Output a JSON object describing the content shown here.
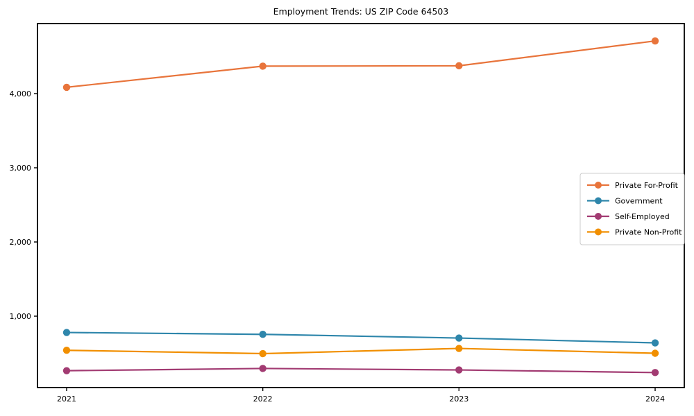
{
  "chart_data": {
    "type": "line",
    "title": "Employment Trends: US ZIP Code 64503",
    "categories": [
      "2021",
      "2022",
      "2023",
      "2024"
    ],
    "series": [
      {
        "name": "Private For-Profit",
        "color": "#E8743B",
        "values": [
          4085,
          4370,
          4375,
          4710
        ]
      },
      {
        "name": "Government",
        "color": "#2E86AB",
        "values": [
          780,
          755,
          705,
          640
        ]
      },
      {
        "name": "Self-Employed",
        "color": "#A23B72",
        "values": [
          265,
          295,
          275,
          240
        ]
      },
      {
        "name": "Private Non-Profit",
        "color": "#F18F01",
        "values": [
          540,
          495,
          565,
          500
        ]
      }
    ],
    "xlabel": "",
    "ylabel": "",
    "y_ticks": [
      {
        "value": 1000,
        "label": "1,000"
      },
      {
        "value": 2000,
        "label": "2,000"
      },
      {
        "value": 3000,
        "label": "3,000"
      },
      {
        "value": 4000,
        "label": "4,000"
      }
    ],
    "ylim": [
      35,
      4945
    ],
    "grid": false,
    "marker": "circle",
    "legend_position": "center-right"
  },
  "colors": {
    "spine": "#000000",
    "tick_text": "#000000",
    "legend_border": "#cccccc",
    "legend_bg": "#ffffff"
  }
}
